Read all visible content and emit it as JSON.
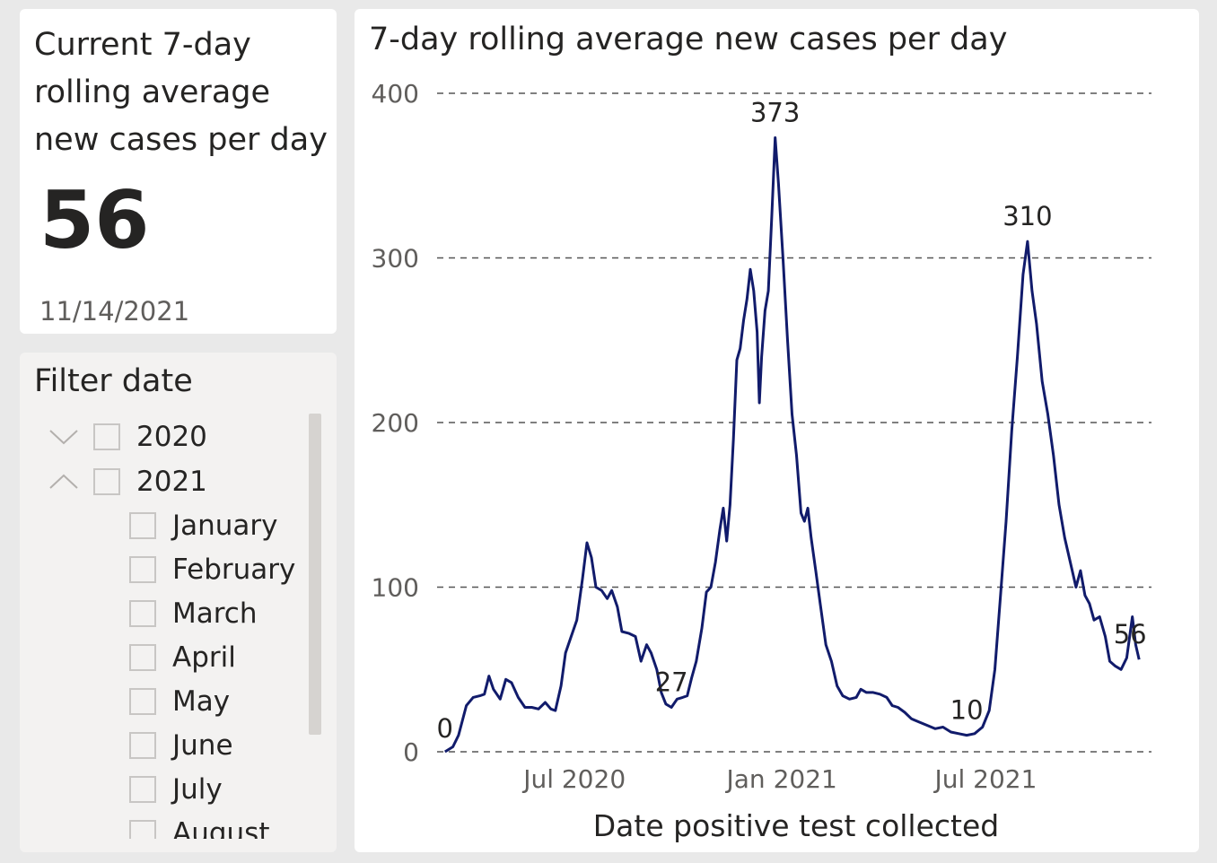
{
  "kpi": {
    "title": "Current 7-day rolling average new cases per day",
    "value": "56",
    "date": "11/14/2021"
  },
  "filter": {
    "title": "Filter date",
    "years": [
      {
        "label": "2020",
        "expanded": false
      },
      {
        "label": "2021",
        "expanded": true
      }
    ],
    "months": [
      "January",
      "February",
      "March",
      "April",
      "May",
      "June",
      "July",
      "August"
    ]
  },
  "colors": {
    "line": "#111b6b",
    "line_highlight": "#8a8fc2",
    "grid": "#555555"
  },
  "chart_data": {
    "type": "line",
    "title": "7-day rolling average new cases per day",
    "xlabel": "Date positive test collected",
    "ylabel": "",
    "ylim": [
      0,
      400
    ],
    "yticks": [
      0,
      100,
      200,
      300,
      400
    ],
    "xticks": [
      {
        "label": "Jul 2020",
        "date": "2020-07-01"
      },
      {
        "label": "Jan 2021",
        "date": "2021-01-01"
      },
      {
        "label": "Jul 2021",
        "date": "2021-07-01"
      }
    ],
    "grid": true,
    "series": [
      {
        "points": [
          [
            "2020-03-08",
            0
          ],
          [
            "2020-03-15",
            3
          ],
          [
            "2020-03-20",
            10
          ],
          [
            "2020-03-27",
            28
          ],
          [
            "2020-04-02",
            33
          ],
          [
            "2020-04-08",
            34
          ],
          [
            "2020-04-12",
            35
          ],
          [
            "2020-04-16",
            46
          ],
          [
            "2020-04-20",
            38
          ],
          [
            "2020-04-26",
            32
          ],
          [
            "2020-05-01",
            44
          ],
          [
            "2020-05-06",
            42
          ],
          [
            "2020-05-12",
            33
          ],
          [
            "2020-05-18",
            27
          ],
          [
            "2020-05-24",
            27
          ],
          [
            "2020-05-30",
            26
          ],
          [
            "2020-06-05",
            30
          ],
          [
            "2020-06-10",
            26
          ],
          [
            "2020-06-14",
            25
          ],
          [
            "2020-06-19",
            40
          ],
          [
            "2020-06-23",
            60
          ],
          [
            "2020-06-28",
            70
          ],
          [
            "2020-07-03",
            80
          ],
          [
            "2020-07-08",
            105
          ],
          [
            "2020-07-12",
            127
          ],
          [
            "2020-07-16",
            118
          ],
          [
            "2020-07-20",
            100
          ],
          [
            "2020-07-25",
            98
          ],
          [
            "2020-07-30",
            93
          ],
          [
            "2020-08-03",
            98
          ],
          [
            "2020-08-08",
            88
          ],
          [
            "2020-08-12",
            73
          ],
          [
            "2020-08-18",
            72
          ],
          [
            "2020-08-24",
            70
          ],
          [
            "2020-08-29",
            55
          ],
          [
            "2020-09-03",
            65
          ],
          [
            "2020-09-07",
            60
          ],
          [
            "2020-09-12",
            50
          ],
          [
            "2020-09-16",
            36
          ],
          [
            "2020-09-20",
            29
          ],
          [
            "2020-09-25",
            27
          ],
          [
            "2020-09-30",
            32
          ],
          [
            "2020-10-05",
            33
          ],
          [
            "2020-10-09",
            34
          ],
          [
            "2020-10-13",
            45
          ],
          [
            "2020-10-17",
            55
          ],
          [
            "2020-10-22",
            75
          ],
          [
            "2020-10-26",
            97
          ],
          [
            "2020-10-30",
            100
          ],
          [
            "2020-11-03",
            115
          ],
          [
            "2020-11-07",
            135
          ],
          [
            "2020-11-10",
            148
          ],
          [
            "2020-11-13",
            128
          ],
          [
            "2020-11-16",
            150
          ],
          [
            "2020-11-19",
            190
          ],
          [
            "2020-11-22",
            238
          ],
          [
            "2020-11-25",
            245
          ],
          [
            "2020-11-28",
            262
          ],
          [
            "2020-12-01",
            275
          ],
          [
            "2020-12-04",
            293
          ],
          [
            "2020-12-07",
            280
          ],
          [
            "2020-12-10",
            255
          ],
          [
            "2020-12-12",
            212
          ],
          [
            "2020-12-14",
            240
          ],
          [
            "2020-12-17",
            268
          ],
          [
            "2020-12-20",
            280
          ],
          [
            "2020-12-23",
            325
          ],
          [
            "2020-12-26",
            373
          ],
          [
            "2020-12-29",
            345
          ],
          [
            "2021-01-02",
            300
          ],
          [
            "2021-01-06",
            250
          ],
          [
            "2021-01-10",
            205
          ],
          [
            "2021-01-14",
            180
          ],
          [
            "2021-01-18",
            145
          ],
          [
            "2021-01-21",
            140
          ],
          [
            "2021-01-24",
            148
          ],
          [
            "2021-01-27",
            130
          ],
          [
            "2021-01-31",
            110
          ],
          [
            "2021-02-04",
            90
          ],
          [
            "2021-02-09",
            65
          ],
          [
            "2021-02-14",
            55
          ],
          [
            "2021-02-19",
            40
          ],
          [
            "2021-02-24",
            34
          ],
          [
            "2021-03-02",
            32
          ],
          [
            "2021-03-08",
            33
          ],
          [
            "2021-03-12",
            38
          ],
          [
            "2021-03-17",
            36
          ],
          [
            "2021-03-23",
            36
          ],
          [
            "2021-03-29",
            35
          ],
          [
            "2021-04-04",
            33
          ],
          [
            "2021-04-09",
            28
          ],
          [
            "2021-04-14",
            27
          ],
          [
            "2021-04-20",
            24
          ],
          [
            "2021-04-26",
            20
          ],
          [
            "2021-05-03",
            18
          ],
          [
            "2021-05-10",
            16
          ],
          [
            "2021-05-17",
            14
          ],
          [
            "2021-05-24",
            15
          ],
          [
            "2021-05-31",
            12
          ],
          [
            "2021-06-07",
            11
          ],
          [
            "2021-06-14",
            10
          ],
          [
            "2021-06-21",
            11
          ],
          [
            "2021-06-28",
            15
          ],
          [
            "2021-07-04",
            25
          ],
          [
            "2021-07-09",
            50
          ],
          [
            "2021-07-14",
            95
          ],
          [
            "2021-07-19",
            140
          ],
          [
            "2021-07-24",
            195
          ],
          [
            "2021-07-29",
            240
          ],
          [
            "2021-08-03",
            290
          ],
          [
            "2021-08-07",
            310
          ],
          [
            "2021-08-11",
            280
          ],
          [
            "2021-08-15",
            260
          ],
          [
            "2021-08-20",
            225
          ],
          [
            "2021-08-25",
            205
          ],
          [
            "2021-08-30",
            180
          ],
          [
            "2021-09-04",
            150
          ],
          [
            "2021-09-09",
            130
          ],
          [
            "2021-09-14",
            115
          ],
          [
            "2021-09-19",
            100
          ],
          [
            "2021-09-23",
            110
          ],
          [
            "2021-09-27",
            95
          ],
          [
            "2021-10-01",
            90
          ],
          [
            "2021-10-05",
            80
          ],
          [
            "2021-10-10",
            82
          ],
          [
            "2021-10-15",
            70
          ],
          [
            "2021-10-19",
            55
          ],
          [
            "2021-10-24",
            52
          ],
          [
            "2021-10-29",
            50
          ],
          [
            "2021-11-03",
            57
          ],
          [
            "2021-11-08",
            82
          ],
          [
            "2021-11-11",
            65
          ],
          [
            "2021-11-14",
            56
          ]
        ]
      }
    ],
    "annotations": [
      {
        "date": "2020-03-08",
        "value": 0,
        "label": "0"
      },
      {
        "date": "2020-09-25",
        "value": 27,
        "label": "27"
      },
      {
        "date": "2020-12-26",
        "value": 373,
        "label": "373"
      },
      {
        "date": "2021-06-14",
        "value": 10,
        "label": "10"
      },
      {
        "date": "2021-08-07",
        "value": 310,
        "label": "310"
      },
      {
        "date": "2021-11-14",
        "value": 56,
        "label": "56"
      }
    ]
  }
}
